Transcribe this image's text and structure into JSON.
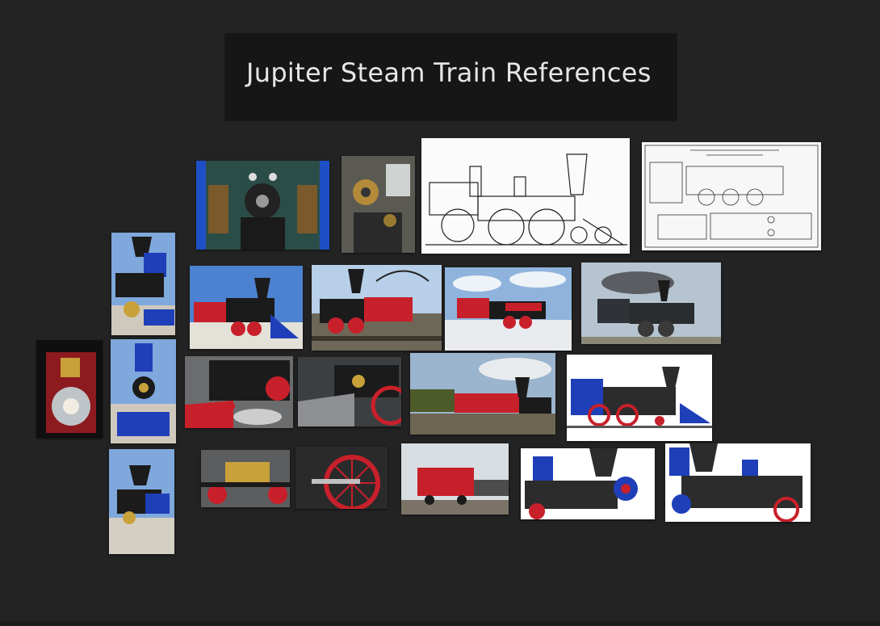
{
  "board": {
    "title": "Jupiter Steam Train References",
    "background": "#232323"
  },
  "images": [
    {
      "name": "cab-interior-wide",
      "kind": "cab"
    },
    {
      "name": "cab-interior-close",
      "kind": "cab"
    },
    {
      "name": "blueprint-side-elevation",
      "kind": "blueprint"
    },
    {
      "name": "blueprint-plan-sheet",
      "kind": "blueprint"
    },
    {
      "name": "locomotive-front-portrait-1",
      "kind": "photo"
    },
    {
      "name": "locomotive-side-render-1",
      "kind": "photo"
    },
    {
      "name": "locomotive-turntable-photo",
      "kind": "photo"
    },
    {
      "name": "locomotive-render-clouds",
      "kind": "photo"
    },
    {
      "name": "locomotive-smoke-gray",
      "kind": "photo"
    },
    {
      "name": "headlamp-closeup",
      "kind": "detail"
    },
    {
      "name": "locomotive-front-portrait-2",
      "kind": "photo"
    },
    {
      "name": "cowcatcher-closeup",
      "kind": "detail"
    },
    {
      "name": "locomotive-front-angle",
      "kind": "detail"
    },
    {
      "name": "locomotive-smoke-wide",
      "kind": "photo"
    },
    {
      "name": "locomotive-3d-model-side",
      "kind": "model"
    },
    {
      "name": "locomotive-front-portrait-3",
      "kind": "photo"
    },
    {
      "name": "cylinder-closeup",
      "kind": "detail"
    },
    {
      "name": "driving-wheel-closeup",
      "kind": "detail"
    },
    {
      "name": "tender-closeup",
      "kind": "detail"
    },
    {
      "name": "3d-model-stack-closeup",
      "kind": "model"
    },
    {
      "name": "3d-model-boiler-closeup",
      "kind": "model"
    }
  ],
  "colors": {
    "red": "#c8202a",
    "blue": "#1f3fb8",
    "gold": "#c9a13a",
    "black": "#1b1b1b",
    "sky": "#8fb3dd"
  }
}
